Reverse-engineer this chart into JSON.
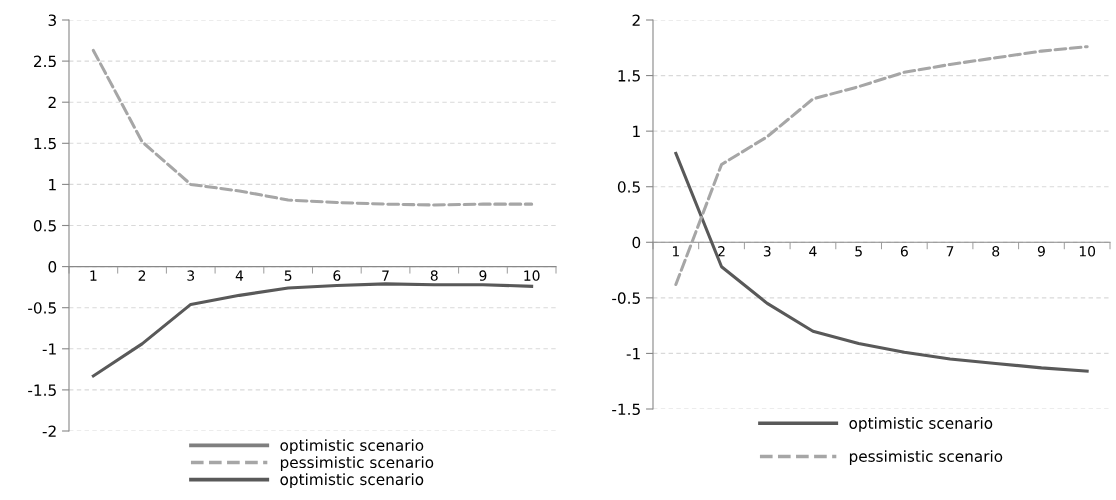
{
  "chart_data": [
    {
      "type": "line",
      "categories": [
        "1",
        "2",
        "3",
        "4",
        "5",
        "6",
        "7",
        "8",
        "9",
        "10"
      ],
      "ylim": [
        -2,
        3
      ],
      "yticks": [
        -2,
        -1.5,
        -1,
        -0.5,
        0,
        0.5,
        1,
        1.5,
        2,
        2.5,
        3
      ],
      "grid": "y",
      "legend": "bottom",
      "marker": "none",
      "series": [
        {
          "name": "optimistic scenario",
          "color": "#7f7f7f",
          "line_style": "solid",
          "values": [
            null,
            null,
            null,
            null,
            null,
            null,
            null,
            null,
            null,
            null
          ]
        },
        {
          "name": "pessimistic scenario",
          "color": "#a6a6a6",
          "line_style": "dashed",
          "values": [
            2.63,
            1.52,
            1.0,
            0.92,
            0.81,
            0.78,
            0.76,
            0.75,
            0.76,
            0.76
          ]
        },
        {
          "name": "optimistic scenario",
          "color": "#595959",
          "line_style": "solid",
          "values": [
            -1.33,
            -0.94,
            -0.46,
            -0.35,
            -0.26,
            -0.23,
            -0.21,
            -0.22,
            -0.22,
            -0.24
          ]
        }
      ]
    },
    {
      "type": "line",
      "categories": [
        "1",
        "2",
        "3",
        "4",
        "5",
        "6",
        "7",
        "8",
        "9",
        "10"
      ],
      "ylim": [
        -1.5,
        2
      ],
      "yticks": [
        -1.5,
        -1,
        -0.5,
        0,
        0.5,
        1,
        1.5,
        2
      ],
      "grid": "y",
      "legend": "bottom",
      "marker": "none",
      "series": [
        {
          "name": "optimistic scenario",
          "color": "#595959",
          "line_style": "solid",
          "values": [
            0.8,
            -0.22,
            -0.55,
            -0.8,
            -0.91,
            -0.99,
            -1.05,
            -1.09,
            -1.13,
            -1.16
          ]
        },
        {
          "name": "pessimistic scenario",
          "color": "#a6a6a6",
          "line_style": "dashed",
          "values": [
            -0.38,
            0.7,
            0.95,
            1.29,
            1.4,
            1.53,
            1.6,
            1.66,
            1.72,
            1.76
          ]
        }
      ]
    }
  ]
}
